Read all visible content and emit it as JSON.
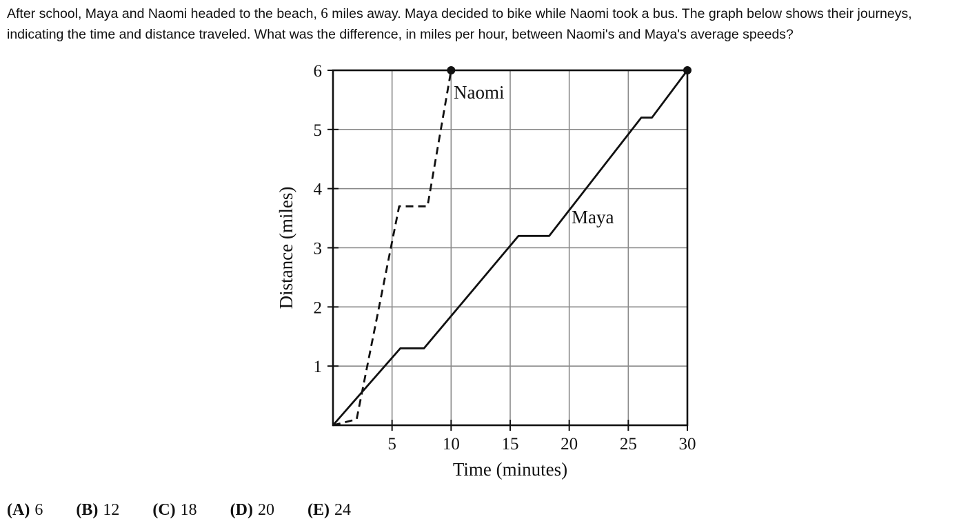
{
  "question": {
    "text_before": "After school, Maya and Naomi headed to the beach, ",
    "distance_value": "6",
    "text_after": " miles away. Maya decided to bike while Naomi took a bus. The graph below shows their journeys, indicating the time and distance traveled. What was the difference, in miles per hour, between Naomi's and Maya's average speeds?"
  },
  "choices": [
    {
      "letter": "(A)",
      "value": "6"
    },
    {
      "letter": "(B)",
      "value": "12"
    },
    {
      "letter": "(C)",
      "value": "18"
    },
    {
      "letter": "(D)",
      "value": "20"
    },
    {
      "letter": "(E)",
      "value": "24"
    }
  ],
  "chart_data": {
    "type": "line",
    "xlabel": "Time (minutes)",
    "ylabel": "Distance (miles)",
    "xlim": [
      0,
      30
    ],
    "ylim": [
      0,
      6
    ],
    "xticks": [
      5,
      10,
      15,
      20,
      25,
      30
    ],
    "yticks": [
      1,
      2,
      3,
      4,
      5,
      6
    ],
    "grid": true,
    "series": [
      {
        "name": "Naomi",
        "style": "dashed",
        "color": "#111111",
        "x": [
          0,
          2,
          5.6,
          8,
          10
        ],
        "y": [
          0,
          0.1,
          3.7,
          3.7,
          6
        ],
        "end_marker": true
      },
      {
        "name": "Maya",
        "style": "solid",
        "color": "#111111",
        "x": [
          0,
          5.7,
          7.7,
          15.7,
          18.3,
          26.1,
          27,
          30
        ],
        "y": [
          0,
          1.3,
          1.3,
          3.2,
          3.2,
          5.2,
          5.2,
          6
        ],
        "end_marker": true
      }
    ]
  }
}
